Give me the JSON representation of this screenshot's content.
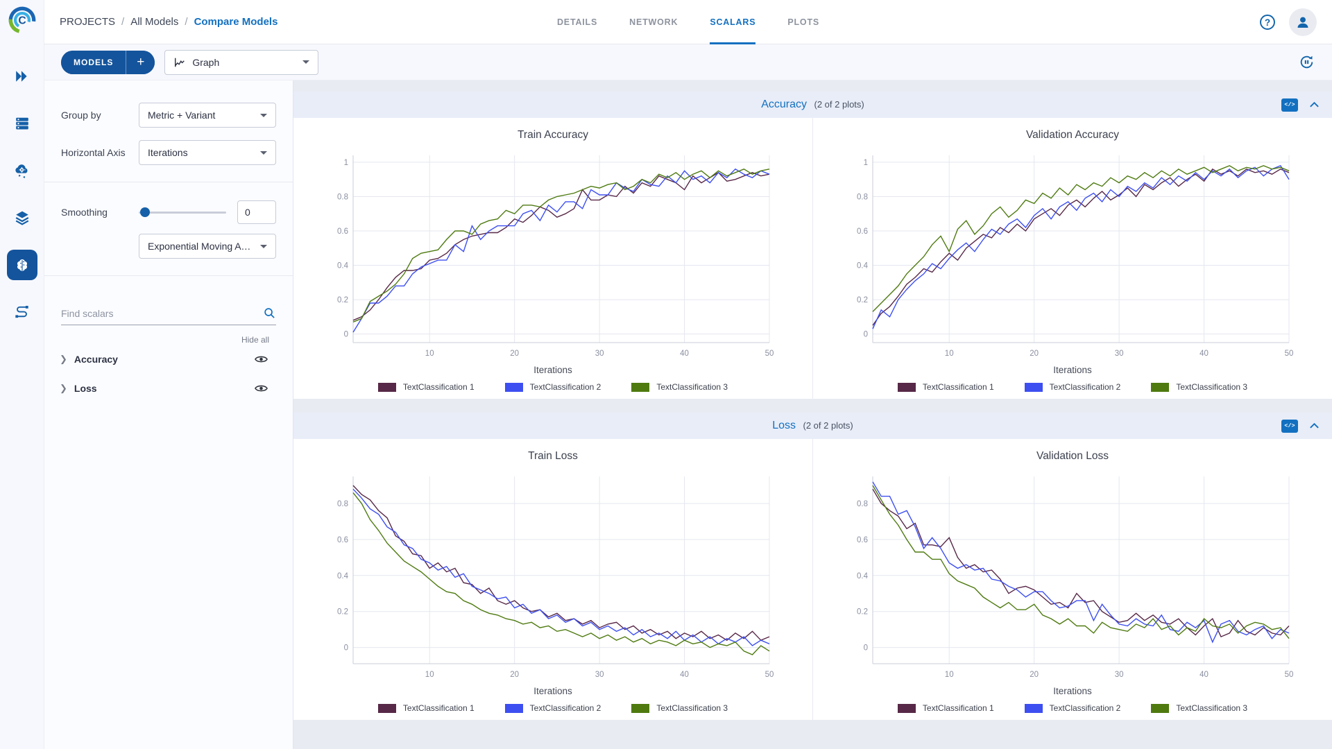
{
  "breadcrumb": {
    "items": [
      "PROJECTS",
      "All Models",
      "Compare Models"
    ]
  },
  "tabs": {
    "items": [
      "DETAILS",
      "NETWORK",
      "SCALARS",
      "PLOTS"
    ],
    "active": "SCALARS"
  },
  "toolbar": {
    "models_button": "MODELS",
    "add_button": "+",
    "view_dropdown": "Graph"
  },
  "nav_icons": [
    "projects-icon",
    "queues-icon",
    "workers-icon",
    "datasets-icon",
    "models-icon",
    "pipelines-icon"
  ],
  "panel": {
    "group_by_label": "Group by",
    "group_by_value": "Metric + Variant",
    "horizontal_axis_label": "Horizontal Axis",
    "horizontal_axis_value": "Iterations",
    "smoothing_label": "Smoothing",
    "smoothing_value": "0",
    "smoothing_method": "Exponential Moving Av...",
    "search_placeholder": "Find scalars",
    "hide_all_label": "Hide all",
    "metric_groups": [
      {
        "label": "Accuracy"
      },
      {
        "label": "Loss"
      }
    ]
  },
  "sections": [
    {
      "title": "Accuracy",
      "count_label": "(2 of 2 plots)"
    },
    {
      "title": "Loss",
      "count_label": "(2 of 2 plots)"
    }
  ],
  "series_colors": [
    "#572847",
    "#3d4ff0",
    "#4e7a10"
  ],
  "legend_labels": [
    "TextClassification 1",
    "TextClassification 2",
    "TextClassification 3"
  ],
  "chart_data": [
    {
      "type": "line",
      "title": "Train Accuracy",
      "xlabel": "Iterations",
      "x_range": [
        1,
        50
      ],
      "xticks": [
        10,
        20,
        30,
        40,
        50
      ],
      "yticks": [
        0,
        0.2,
        0.4,
        0.6,
        0.8,
        1
      ],
      "ylim": [
        -0.05,
        1.04
      ],
      "grid": true,
      "legend_position": "bottom",
      "series": [
        {
          "name": "TextClassification 1",
          "color": "#572847",
          "values": [
            0.08,
            0.1,
            0.14,
            0.2,
            0.27,
            0.33,
            0.37,
            0.37,
            0.38,
            0.43,
            0.44,
            0.47,
            0.52,
            0.55,
            0.57,
            0.58,
            0.59,
            0.59,
            0.62,
            0.67,
            0.65,
            0.69,
            0.74,
            0.72,
            0.68,
            0.7,
            0.73,
            0.84,
            0.78,
            0.78,
            0.81,
            0.8,
            0.86,
            0.82,
            0.88,
            0.86,
            0.92,
            0.9,
            0.88,
            0.84,
            0.92,
            0.88,
            0.91,
            0.94,
            0.89,
            0.9,
            0.92,
            0.94,
            0.92,
            0.93
          ]
        },
        {
          "name": "TextClassification 2",
          "color": "#3d4ff0",
          "values": [
            0.01,
            0.09,
            0.18,
            0.18,
            0.22,
            0.28,
            0.28,
            0.35,
            0.39,
            0.41,
            0.43,
            0.43,
            0.52,
            0.48,
            0.63,
            0.55,
            0.6,
            0.63,
            0.63,
            0.63,
            0.7,
            0.72,
            0.66,
            0.75,
            0.71,
            0.77,
            0.77,
            0.73,
            0.84,
            0.81,
            0.81,
            0.88,
            0.85,
            0.83,
            0.9,
            0.87,
            0.86,
            0.92,
            0.88,
            0.95,
            0.9,
            0.92,
            0.88,
            0.94,
            0.91,
            0.96,
            0.93,
            0.91,
            0.95,
            0.93
          ]
        },
        {
          "name": "TextClassification 3",
          "color": "#4e7a10",
          "values": [
            0.07,
            0.09,
            0.19,
            0.22,
            0.25,
            0.29,
            0.35,
            0.44,
            0.47,
            0.48,
            0.49,
            0.55,
            0.6,
            0.6,
            0.58,
            0.64,
            0.66,
            0.67,
            0.72,
            0.7,
            0.75,
            0.75,
            0.74,
            0.78,
            0.8,
            0.81,
            0.82,
            0.84,
            0.86,
            0.85,
            0.87,
            0.88,
            0.84,
            0.86,
            0.9,
            0.88,
            0.93,
            0.91,
            0.94,
            0.9,
            0.93,
            0.95,
            0.91,
            0.95,
            0.92,
            0.94,
            0.96,
            0.93,
            0.95,
            0.96
          ]
        }
      ]
    },
    {
      "type": "line",
      "title": "Validation Accuracy",
      "xlabel": "Iterations",
      "x_range": [
        1,
        50
      ],
      "xticks": [
        10,
        20,
        30,
        40,
        50
      ],
      "yticks": [
        0,
        0.2,
        0.4,
        0.6,
        0.8,
        1
      ],
      "ylim": [
        -0.05,
        1.04
      ],
      "grid": true,
      "legend_position": "bottom",
      "series": [
        {
          "name": "TextClassification 1",
          "color": "#572847",
          "values": [
            0.05,
            0.12,
            0.16,
            0.22,
            0.29,
            0.33,
            0.38,
            0.36,
            0.42,
            0.47,
            0.43,
            0.5,
            0.54,
            0.58,
            0.56,
            0.62,
            0.59,
            0.64,
            0.6,
            0.67,
            0.7,
            0.73,
            0.69,
            0.75,
            0.78,
            0.74,
            0.79,
            0.83,
            0.78,
            0.81,
            0.85,
            0.8,
            0.87,
            0.84,
            0.88,
            0.91,
            0.86,
            0.9,
            0.93,
            0.89,
            0.96,
            0.93,
            0.95,
            0.92,
            0.96,
            0.94,
            0.95,
            0.93,
            0.96,
            0.94
          ]
        },
        {
          "name": "TextClassification 2",
          "color": "#3d4ff0",
          "values": [
            0.03,
            0.14,
            0.1,
            0.2,
            0.26,
            0.31,
            0.35,
            0.41,
            0.38,
            0.44,
            0.49,
            0.53,
            0.48,
            0.55,
            0.61,
            0.58,
            0.64,
            0.67,
            0.62,
            0.69,
            0.73,
            0.67,
            0.74,
            0.77,
            0.72,
            0.79,
            0.82,
            0.77,
            0.84,
            0.8,
            0.86,
            0.83,
            0.88,
            0.85,
            0.91,
            0.87,
            0.92,
            0.89,
            0.94,
            0.9,
            0.95,
            0.92,
            0.96,
            0.91,
            0.95,
            0.97,
            0.92,
            0.96,
            0.98,
            0.9
          ]
        },
        {
          "name": "TextClassification 3",
          "color": "#4e7a10",
          "values": [
            0.13,
            0.18,
            0.23,
            0.28,
            0.35,
            0.4,
            0.45,
            0.52,
            0.57,
            0.48,
            0.61,
            0.66,
            0.58,
            0.63,
            0.7,
            0.74,
            0.68,
            0.72,
            0.78,
            0.76,
            0.82,
            0.79,
            0.85,
            0.81,
            0.87,
            0.84,
            0.88,
            0.86,
            0.91,
            0.88,
            0.92,
            0.9,
            0.94,
            0.91,
            0.95,
            0.92,
            0.96,
            0.93,
            0.95,
            0.97,
            0.94,
            0.96,
            0.98,
            0.95,
            0.97,
            0.96,
            0.98,
            0.96,
            0.97,
            0.95
          ]
        }
      ]
    },
    {
      "type": "line",
      "title": "Train Loss",
      "xlabel": "Iterations",
      "x_range": [
        1,
        50
      ],
      "xticks": [
        10,
        20,
        30,
        40,
        50
      ],
      "yticks": [
        0,
        0.2,
        0.4,
        0.6,
        0.8
      ],
      "ylim": [
        -0.09,
        0.95
      ],
      "grid": true,
      "legend_position": "bottom",
      "series": [
        {
          "name": "TextClassification 1",
          "color": "#572847",
          "values": [
            0.9,
            0.85,
            0.82,
            0.76,
            0.72,
            0.62,
            0.59,
            0.52,
            0.51,
            0.44,
            0.47,
            0.42,
            0.44,
            0.36,
            0.35,
            0.3,
            0.33,
            0.26,
            0.24,
            0.26,
            0.22,
            0.2,
            0.21,
            0.17,
            0.19,
            0.15,
            0.16,
            0.13,
            0.15,
            0.11,
            0.13,
            0.14,
            0.1,
            0.12,
            0.08,
            0.1,
            0.07,
            0.09,
            0.05,
            0.08,
            0.06,
            0.09,
            0.05,
            0.07,
            0.04,
            0.08,
            0.05,
            0.09,
            0.04,
            0.06
          ]
        },
        {
          "name": "TextClassification 2",
          "color": "#3d4ff0",
          "values": [
            0.88,
            0.83,
            0.77,
            0.74,
            0.67,
            0.64,
            0.57,
            0.55,
            0.49,
            0.47,
            0.43,
            0.45,
            0.39,
            0.41,
            0.34,
            0.32,
            0.3,
            0.27,
            0.28,
            0.22,
            0.24,
            0.19,
            0.21,
            0.16,
            0.18,
            0.14,
            0.16,
            0.12,
            0.14,
            0.1,
            0.12,
            0.09,
            0.11,
            0.07,
            0.1,
            0.06,
            0.08,
            0.05,
            0.09,
            0.04,
            0.07,
            0.03,
            0.06,
            0.02,
            0.05,
            0.03,
            0.06,
            0.01,
            0.04,
            0.02
          ]
        },
        {
          "name": "TextClassification 3",
          "color": "#4e7a10",
          "values": [
            0.86,
            0.8,
            0.71,
            0.65,
            0.58,
            0.53,
            0.48,
            0.45,
            0.42,
            0.38,
            0.34,
            0.31,
            0.3,
            0.26,
            0.24,
            0.21,
            0.19,
            0.18,
            0.16,
            0.15,
            0.13,
            0.14,
            0.11,
            0.12,
            0.09,
            0.1,
            0.08,
            0.06,
            0.08,
            0.05,
            0.07,
            0.04,
            0.06,
            0.03,
            0.05,
            0.02,
            0.04,
            0.03,
            0.01,
            0.04,
            0.02,
            0.03,
            0.0,
            0.02,
            0.01,
            0.03,
            -0.02,
            -0.04,
            0.01,
            -0.02
          ]
        }
      ]
    },
    {
      "type": "line",
      "title": "Validation Loss",
      "xlabel": "Iterations",
      "x_range": [
        1,
        50
      ],
      "xticks": [
        10,
        20,
        30,
        40,
        50
      ],
      "yticks": [
        0,
        0.2,
        0.4,
        0.6,
        0.8
      ],
      "ylim": [
        -0.09,
        0.95
      ],
      "grid": true,
      "legend_position": "bottom",
      "series": [
        {
          "name": "TextClassification 1",
          "color": "#572847",
          "values": [
            0.88,
            0.8,
            0.76,
            0.73,
            0.66,
            0.69,
            0.57,
            0.57,
            0.56,
            0.61,
            0.5,
            0.44,
            0.46,
            0.42,
            0.43,
            0.38,
            0.3,
            0.33,
            0.34,
            0.32,
            0.28,
            0.24,
            0.25,
            0.22,
            0.3,
            0.25,
            0.26,
            0.2,
            0.17,
            0.14,
            0.15,
            0.19,
            0.15,
            0.18,
            0.14,
            0.13,
            0.16,
            0.11,
            0.07,
            0.12,
            0.16,
            0.06,
            0.08,
            0.15,
            0.09,
            0.07,
            0.11,
            0.08,
            0.07,
            0.12
          ]
        },
        {
          "name": "TextClassification 2",
          "color": "#3d4ff0",
          "values": [
            0.92,
            0.84,
            0.84,
            0.74,
            0.76,
            0.67,
            0.55,
            0.61,
            0.55,
            0.47,
            0.44,
            0.46,
            0.43,
            0.44,
            0.38,
            0.37,
            0.34,
            0.32,
            0.28,
            0.31,
            0.31,
            0.26,
            0.22,
            0.23,
            0.26,
            0.26,
            0.15,
            0.24,
            0.18,
            0.13,
            0.12,
            0.16,
            0.13,
            0.12,
            0.18,
            0.1,
            0.09,
            0.14,
            0.11,
            0.15,
            0.03,
            0.13,
            0.15,
            0.09,
            0.07,
            0.1,
            0.12,
            0.05,
            0.1,
            0.08
          ]
        },
        {
          "name": "TextClassification 3",
          "color": "#4e7a10",
          "values": [
            0.9,
            0.82,
            0.74,
            0.68,
            0.6,
            0.53,
            0.53,
            0.49,
            0.49,
            0.41,
            0.37,
            0.35,
            0.33,
            0.28,
            0.25,
            0.22,
            0.25,
            0.21,
            0.21,
            0.24,
            0.18,
            0.16,
            0.13,
            0.16,
            0.12,
            0.12,
            0.08,
            0.14,
            0.11,
            0.1,
            0.09,
            0.13,
            0.11,
            0.16,
            0.1,
            0.12,
            0.07,
            0.11,
            0.09,
            0.16,
            0.12,
            0.11,
            0.13,
            0.08,
            0.12,
            0.14,
            0.13,
            0.1,
            0.11,
            0.05
          ]
        }
      ]
    }
  ],
  "ui_colors": {
    "accent_blue": "#1370c0",
    "button_blue": "#14549c",
    "section_header_bg": "#e8edf8"
  }
}
